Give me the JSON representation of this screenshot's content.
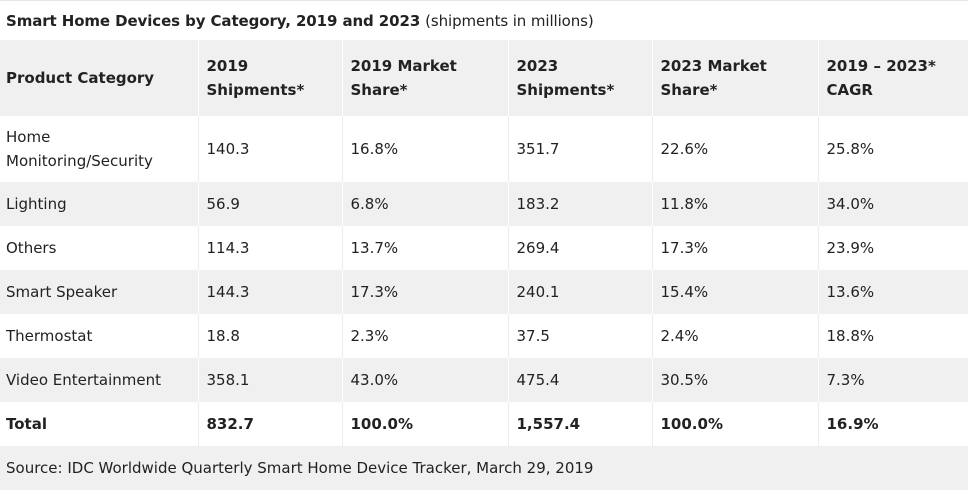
{
  "chart_data": {
    "type": "table",
    "title": "Smart Home Devices by Category, 2019 and 2023",
    "subtitle": "(shipments in millions)",
    "columns": [
      "Product Category",
      "2019 Shipments*",
      "2019 Market Share*",
      "2023 Shipments*",
      "2023 Market Share*",
      "2019 – 2023* CAGR"
    ],
    "rows": [
      [
        "Home Monitoring/Security",
        "140.3",
        "16.8%",
        "351.7",
        "22.6%",
        "25.8%"
      ],
      [
        "Lighting",
        "56.9",
        "6.8%",
        "183.2",
        "11.8%",
        "34.0%"
      ],
      [
        "Others",
        "114.3",
        "13.7%",
        "269.4",
        "17.3%",
        "23.9%"
      ],
      [
        "Smart Speaker",
        "144.3",
        "17.3%",
        "240.1",
        "15.4%",
        "13.6%"
      ],
      [
        "Thermostat",
        "18.8",
        "2.3%",
        "37.5",
        "2.4%",
        "18.8%"
      ],
      [
        "Video Entertainment",
        "358.1",
        "43.0%",
        "475.4",
        "30.5%",
        "7.3%"
      ]
    ],
    "total": [
      "Total",
      "832.7",
      "100.0%",
      "1,557.4",
      "100.0%",
      "16.9%"
    ],
    "source": "Source: IDC Worldwide Quarterly Smart Home Device Tracker, March 29, 2019"
  }
}
